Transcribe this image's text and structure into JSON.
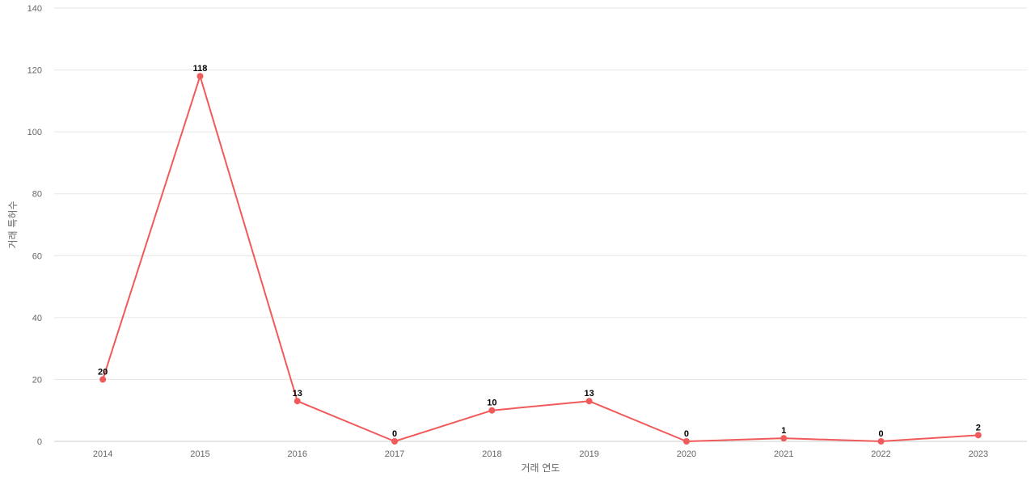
{
  "chart_data": {
    "type": "line",
    "categories": [
      "2014",
      "2015",
      "2016",
      "2017",
      "2018",
      "2019",
      "2020",
      "2021",
      "2022",
      "2023"
    ],
    "series": [
      {
        "values": [
          20,
          118,
          13,
          0,
          10,
          13,
          0,
          1,
          0,
          2
        ],
        "color": "#f05a5a"
      }
    ],
    "xlabel": "거래 연도",
    "ylabel": "거래 특허수",
    "ylim": [
      0,
      140
    ],
    "yticks": [
      0,
      20,
      40,
      60,
      80,
      100,
      120,
      140
    ],
    "grid": true,
    "data_labels": true
  }
}
